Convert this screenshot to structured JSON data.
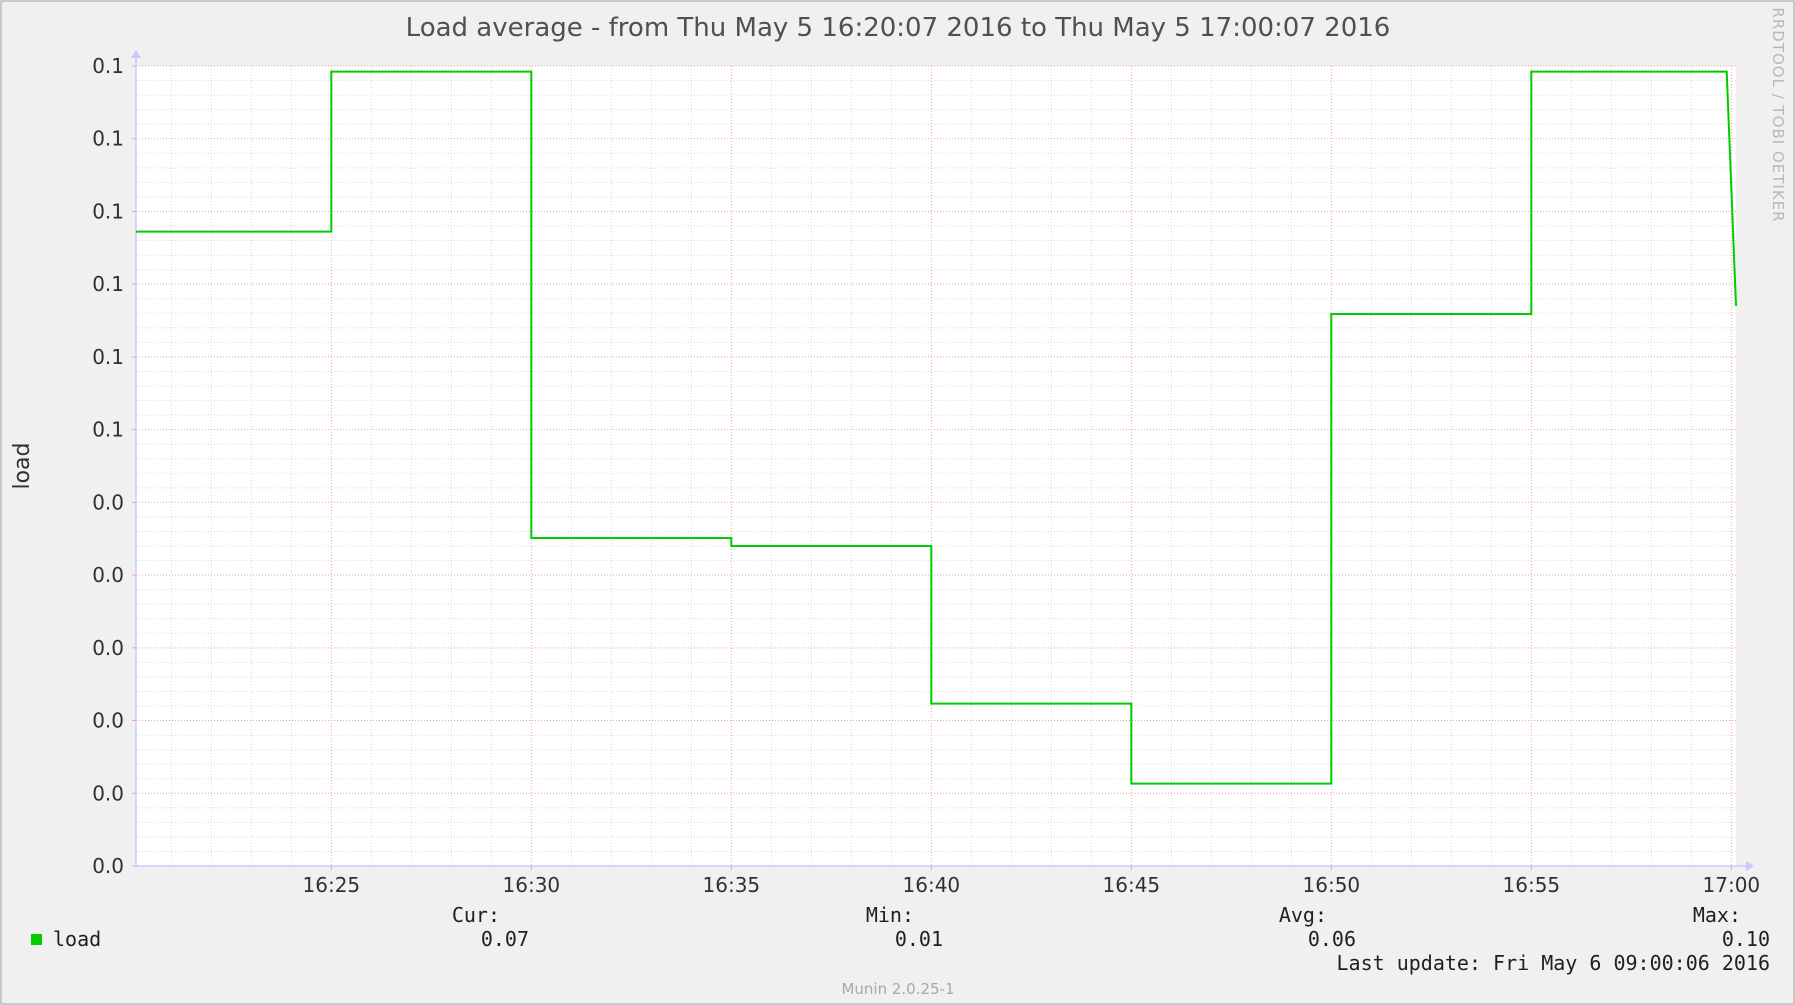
{
  "chart_data": {
    "type": "line",
    "title": "Load average - from Thu May  5 16:20:07 2016 to Thu May  5 17:00:07 2016",
    "ylabel": "load",
    "xlabel": "",
    "x_ticks": [
      "16:25",
      "16:30",
      "16:35",
      "16:40",
      "16:45",
      "16:50",
      "16:55",
      "17:00"
    ],
    "y_ticks": [
      "0.0",
      "0.0",
      "0.0",
      "0.0",
      "0.0",
      "0.0",
      "0.1",
      "0.1",
      "0.1",
      "0.1",
      "0.1",
      "0.1"
    ],
    "xlim": [
      "16:20:07",
      "17:00:07"
    ],
    "ylim": [
      0.0,
      0.1
    ],
    "grid": true,
    "series": [
      {
        "name": "load",
        "color": "#00cc00",
        "points": [
          {
            "x": "16:20:07",
            "y": 0.0793
          },
          {
            "x": "16:25:00",
            "y": 0.0793
          },
          {
            "x": "16:25:00",
            "y": 0.0993
          },
          {
            "x": "16:30:00",
            "y": 0.0993
          },
          {
            "x": "16:30:00",
            "y": 0.041
          },
          {
            "x": "16:35:00",
            "y": 0.041
          },
          {
            "x": "16:35:00",
            "y": 0.04
          },
          {
            "x": "16:40:00",
            "y": 0.04
          },
          {
            "x": "16:40:00",
            "y": 0.0203
          },
          {
            "x": "16:45:00",
            "y": 0.0203
          },
          {
            "x": "16:45:00",
            "y": 0.0103
          },
          {
            "x": "16:50:00",
            "y": 0.0103
          },
          {
            "x": "16:50:00",
            "y": 0.069
          },
          {
            "x": "16:55:00",
            "y": 0.069
          },
          {
            "x": "16:55:00",
            "y": 0.0993
          },
          {
            "x": "16:59:53",
            "y": 0.0993
          },
          {
            "x": "17:00:07",
            "y": 0.07
          }
        ]
      }
    ],
    "legend": {
      "entry": "load",
      "cur_label": "Cur:",
      "cur_value": "0.07",
      "min_label": "Min:",
      "min_value": "0.01",
      "avg_label": "Avg:",
      "avg_value": "0.06",
      "max_label": "Max:",
      "max_value": "0.10"
    },
    "last_update": "Last update: Fri May  6 09:00:06 2016",
    "watermark": "RRDTOOL / TOBI OETIKER",
    "footer": "Munin 2.0.25-1"
  },
  "colors": {
    "background": "#f0f0f0",
    "plot_background": "#ffffff",
    "major_grid": "#f0a0a0",
    "minor_grid": "#d8d8d8",
    "series": "#00cc00",
    "axis": "#c8c8ff"
  }
}
